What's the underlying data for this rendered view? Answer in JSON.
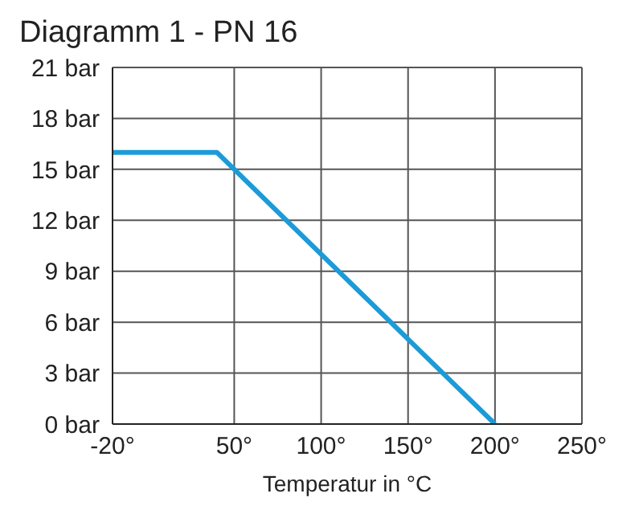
{
  "chart_data": {
    "type": "line",
    "title": "Diagramm 1 - PN 16",
    "xlabel": "Temperatur in °C",
    "x": [
      -20,
      40,
      200
    ],
    "series": [
      {
        "color": "#1b9bd7",
        "values": [
          16,
          16,
          0
        ]
      }
    ],
    "xlim": [
      -20,
      250
    ],
    "xticks": [
      {
        "value": -20,
        "label": "-20°"
      },
      {
        "value": 50,
        "label": "50°"
      },
      {
        "value": 100,
        "label": "100°"
      },
      {
        "value": 150,
        "label": "150°"
      },
      {
        "value": 200,
        "label": "200°"
      },
      {
        "value": 250,
        "label": "250°"
      }
    ],
    "ylim": [
      0,
      21
    ],
    "yticks": [
      {
        "value": 0,
        "label": "0 bar"
      },
      {
        "value": 3,
        "label": "3 bar"
      },
      {
        "value": 6,
        "label": "6 bar"
      },
      {
        "value": 9,
        "label": "9 bar"
      },
      {
        "value": 12,
        "label": "12 bar"
      },
      {
        "value": 15,
        "label": "15 bar"
      },
      {
        "value": 18,
        "label": "18 bar"
      },
      {
        "value": 21,
        "label": "21 bar"
      }
    ],
    "grid": true,
    "legend": false,
    "marker": "none",
    "line_style": "solid"
  }
}
